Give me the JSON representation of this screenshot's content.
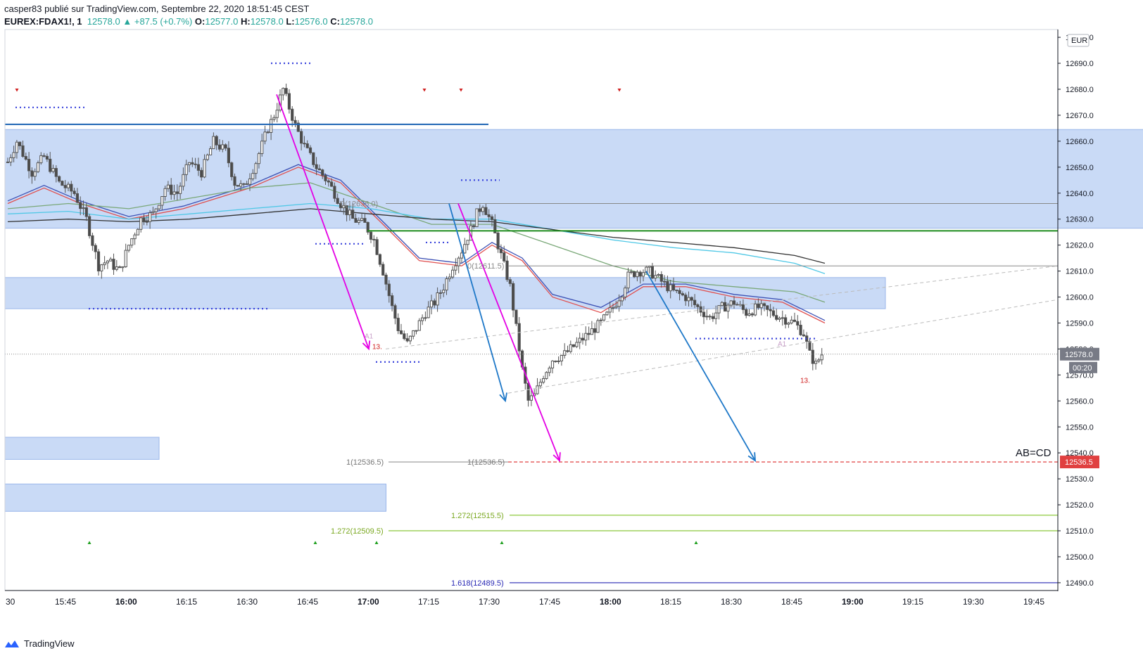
{
  "header": {
    "line1": "casper83 publié sur TradingView.com, Septembre 22, 2020 18:51:45 CEST",
    "symbol": "EUREX:FDAX1!, 1",
    "last": "12578.0",
    "change": "▲ +87.5 (+0.7%)",
    "o_label": "O:",
    "o": "12577.0",
    "h_label": "H:",
    "h": "12578.0",
    "l_label": "L:",
    "l": "12576.0",
    "c_label": "C:",
    "c": "12578.0"
  },
  "footer": {
    "brand": "TradingView"
  },
  "colors": {
    "zone": "#bfd3f5",
    "zone_border": "#9ab6ea",
    "magenta": "#e400e4",
    "blue_arrow": "#1e78c8",
    "green_line": "#1e8c1e",
    "lime": "#8cc83c",
    "navy": "#2828b4",
    "red_dash": "#e04040",
    "ema_red": "#e05050",
    "ema_blue": "#3c50b4",
    "teal": "#50c8e6",
    "black": "#323232",
    "olive": "#7aa878"
  },
  "chart_data": {
    "type": "candlestick",
    "currency": "EUR",
    "x_ticks": [
      "30",
      "15:45",
      "16:00",
      "16:15",
      "16:30",
      "16:45",
      "17:00",
      "17:15",
      "17:30",
      "17:45",
      "18:00",
      "18:15",
      "18:30",
      "18:45",
      "19:00",
      "19:15",
      "19:30",
      "19:45"
    ],
    "x_bold_ticks": [
      "16:00",
      "17:00",
      "18:00",
      "19:00"
    ],
    "y_ticks": [
      12700,
      12690,
      12680,
      12670,
      12660,
      12650,
      12640,
      12630,
      12620,
      12610,
      12600,
      12590,
      12580,
      12570,
      12560,
      12550,
      12540,
      12530,
      12520,
      12510,
      12500,
      12490
    ],
    "ylim": [
      12487,
      12703
    ],
    "last_price": "12578.0",
    "countdown": "00:20",
    "target_price": "12536.5",
    "ab_cd_label": "AB=CD",
    "fib_labels": {
      "zero1": "0(12636.0)",
      "zero2": "0(12611.5)",
      "one1": "1(12536.5)",
      "one2": "1(12536.5)",
      "f1272a": "1.272(12515.5)",
      "f1272b": "1.272(12509.5)",
      "f1618": "1.618(12489.5)"
    },
    "markers": {
      "a1": "A1",
      "thirteen": "13."
    },
    "zones": [
      {
        "from": 0,
        "to": 1000,
        "top": 12664.5,
        "bottom": 12626.5
      },
      {
        "from": 0,
        "to": 290,
        "top": 12607.5,
        "bottom": 12595.5
      },
      {
        "from": 0,
        "to": 50,
        "top": 12546,
        "bottom": 12537.5
      },
      {
        "from": 0,
        "to": 125,
        "top": 12528,
        "bottom": 12517.5
      }
    ],
    "candle_anchors": [
      [
        0,
        12652
      ],
      [
        3,
        12660
      ],
      [
        8,
        12648
      ],
      [
        12,
        12654
      ],
      [
        17,
        12644
      ],
      [
        22,
        12640
      ],
      [
        26,
        12630
      ],
      [
        30,
        12612
      ],
      [
        33,
        12614
      ],
      [
        37,
        12610
      ],
      [
        40,
        12620
      ],
      [
        44,
        12630
      ],
      [
        48,
        12632
      ],
      [
        52,
        12642
      ],
      [
        56,
        12640
      ],
      [
        60,
        12652
      ],
      [
        64,
        12648
      ],
      [
        68,
        12660
      ],
      [
        72,
        12656
      ],
      [
        75,
        12644
      ],
      [
        78,
        12642
      ],
      [
        82,
        12652
      ],
      [
        86,
        12665
      ],
      [
        88,
        12670
      ],
      [
        91,
        12680
      ],
      [
        95,
        12666
      ],
      [
        98,
        12658
      ],
      [
        102,
        12650
      ],
      [
        106,
        12644
      ],
      [
        110,
        12636
      ],
      [
        114,
        12630
      ],
      [
        118,
        12628
      ],
      [
        121,
        12622
      ],
      [
        124,
        12610
      ],
      [
        127,
        12596
      ],
      [
        129,
        12588
      ],
      [
        132,
        12582
      ],
      [
        135,
        12588
      ],
      [
        138,
        12594
      ],
      [
        141,
        12598
      ],
      [
        144,
        12604
      ],
      [
        147,
        12612
      ],
      [
        150,
        12618
      ],
      [
        153,
        12626
      ],
      [
        155,
        12632
      ],
      [
        157,
        12636
      ],
      [
        160,
        12628
      ],
      [
        163,
        12616
      ],
      [
        166,
        12604
      ],
      [
        168,
        12588
      ],
      [
        170,
        12572
      ],
      [
        172,
        12560
      ],
      [
        174,
        12562
      ],
      [
        177,
        12570
      ],
      [
        180,
        12576
      ],
      [
        184,
        12578
      ],
      [
        188,
        12582
      ],
      [
        192,
        12586
      ],
      [
        196,
        12590
      ],
      [
        200,
        12596
      ],
      [
        203,
        12602
      ],
      [
        205,
        12608
      ],
      [
        208,
        12610
      ],
      [
        212,
        12610
      ],
      [
        216,
        12606
      ],
      [
        220,
        12602
      ],
      [
        224,
        12600
      ],
      [
        228,
        12596
      ],
      [
        232,
        12592
      ],
      [
        236,
        12596
      ],
      [
        240,
        12598
      ],
      [
        244,
        12594
      ],
      [
        248,
        12596
      ],
      [
        252,
        12594
      ],
      [
        256,
        12592
      ],
      [
        260,
        12590
      ],
      [
        263,
        12586
      ],
      [
        265,
        12578
      ],
      [
        267,
        12574
      ],
      [
        269,
        12578
      ]
    ],
    "ma_lines": [
      {
        "color": "ema_red",
        "pts": [
          [
            0,
            12636
          ],
          [
            12,
            12642
          ],
          [
            24,
            12636
          ],
          [
            40,
            12630
          ],
          [
            58,
            12634
          ],
          [
            80,
            12642
          ],
          [
            96,
            12650
          ],
          [
            110,
            12644
          ],
          [
            124,
            12628
          ],
          [
            136,
            12614
          ],
          [
            150,
            12612
          ],
          [
            160,
            12620
          ],
          [
            170,
            12614
          ],
          [
            180,
            12600
          ],
          [
            196,
            12594
          ],
          [
            210,
            12604
          ],
          [
            224,
            12604
          ],
          [
            240,
            12600
          ],
          [
            256,
            12598
          ],
          [
            270,
            12590
          ]
        ]
      },
      {
        "color": "ema_blue",
        "pts": [
          [
            0,
            12637
          ],
          [
            12,
            12643
          ],
          [
            24,
            12637
          ],
          [
            40,
            12631
          ],
          [
            58,
            12635
          ],
          [
            80,
            12643
          ],
          [
            96,
            12651
          ],
          [
            110,
            12645
          ],
          [
            124,
            12629
          ],
          [
            136,
            12615
          ],
          [
            150,
            12613
          ],
          [
            160,
            12621
          ],
          [
            170,
            12615
          ],
          [
            180,
            12601
          ],
          [
            196,
            12596
          ],
          [
            210,
            12605
          ],
          [
            224,
            12605
          ],
          [
            240,
            12601
          ],
          [
            256,
            12599
          ],
          [
            270,
            12591
          ]
        ]
      },
      {
        "color": "olive",
        "pts": [
          [
            0,
            12634
          ],
          [
            20,
            12636
          ],
          [
            40,
            12634
          ],
          [
            60,
            12638
          ],
          [
            80,
            12642
          ],
          [
            100,
            12644
          ],
          [
            120,
            12636
          ],
          [
            140,
            12628
          ],
          [
            160,
            12628
          ],
          [
            180,
            12620
          ],
          [
            200,
            12612
          ],
          [
            220,
            12606
          ],
          [
            240,
            12604
          ],
          [
            260,
            12602
          ],
          [
            270,
            12598
          ]
        ]
      },
      {
        "color": "teal",
        "pts": [
          [
            0,
            12632
          ],
          [
            20,
            12633
          ],
          [
            40,
            12630
          ],
          [
            60,
            12632
          ],
          [
            80,
            12634
          ],
          [
            100,
            12636
          ],
          [
            120,
            12634
          ],
          [
            140,
            12630
          ],
          [
            160,
            12630
          ],
          [
            180,
            12626
          ],
          [
            200,
            12622
          ],
          [
            220,
            12619
          ],
          [
            240,
            12617
          ],
          [
            260,
            12613
          ],
          [
            270,
            12609
          ]
        ]
      },
      {
        "color": "black",
        "pts": [
          [
            0,
            12629
          ],
          [
            20,
            12630
          ],
          [
            40,
            12629
          ],
          [
            60,
            12630
          ],
          [
            80,
            12632
          ],
          [
            100,
            12634
          ],
          [
            120,
            12632
          ],
          [
            140,
            12630
          ],
          [
            160,
            12629
          ],
          [
            180,
            12626
          ],
          [
            200,
            12623
          ],
          [
            220,
            12621
          ],
          [
            240,
            12619
          ],
          [
            260,
            12616
          ],
          [
            270,
            12613
          ]
        ]
      }
    ]
  }
}
